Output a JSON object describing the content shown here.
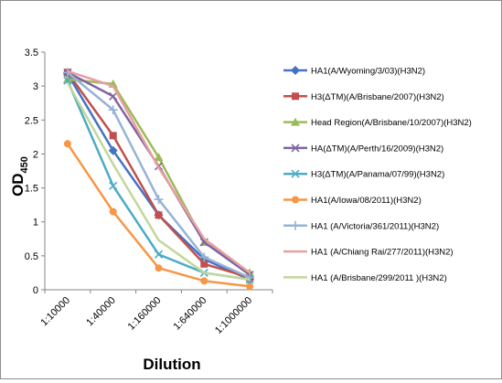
{
  "chart_data": {
    "type": "line",
    "xlabel": "Dilution",
    "ylabel": "OD",
    "ylabel_subscript": "450",
    "categories": [
      "1:10000",
      "1:40000",
      "1:160000",
      "1:640000",
      "1:1000000"
    ],
    "ylim": [
      0,
      3.5
    ],
    "yticks": [
      "0",
      "0.5",
      "1",
      "1.5",
      "2",
      "2.5",
      "3",
      "3.5"
    ],
    "grid": false,
    "legend": "right",
    "series": [
      {
        "name": "HA1(A/Wyoming/3/03)(H3N2)",
        "color": "#4472c4",
        "marker": "diamond",
        "values": [
          3.18,
          2.05,
          1.1,
          0.45,
          0.15
        ]
      },
      {
        "name": "H3(ΔTM)(A/Brisbane/2007)(H3N2)",
        "color": "#c0504d",
        "marker": "square",
        "values": [
          3.2,
          2.27,
          1.1,
          0.38,
          0.18
        ]
      },
      {
        "name": "Head Region(A/Brisbane/10/2007)(H3N2)",
        "color": "#9bbb59",
        "marker": "triangle",
        "values": [
          3.1,
          3.03,
          1.95,
          0.7,
          0.25
        ]
      },
      {
        "name": "HA(ΔTM)(A/Perth/16/2009)(H3N2)",
        "color": "#8064a2",
        "marker": "x",
        "values": [
          3.2,
          2.85,
          1.82,
          0.7,
          0.22
        ]
      },
      {
        "name": "H3(ΔTM)(A/Panama/07/99)(H3N2)",
        "color": "#4bacc6",
        "marker": "x",
        "values": [
          3.08,
          1.53,
          0.52,
          0.25,
          0.15
        ]
      },
      {
        "name": "HA1(A/Iowa/08/2011)(H3N2)",
        "color": "#f79646",
        "marker": "circle",
        "values": [
          2.15,
          1.15,
          0.32,
          0.13,
          0.05
        ]
      },
      {
        "name": "HA1 (A/Victoria/361/2011)(H3N2)",
        "color": "#95b3d7",
        "marker": "plus",
        "values": [
          3.2,
          2.65,
          1.33,
          0.48,
          0.18
        ]
      },
      {
        "name": "HA1 (A/Chiang Rai/277/2011)(H3N2)",
        "color": "#e6a0a0",
        "marker": "none",
        "values": [
          3.22,
          3.0,
          1.8,
          0.75,
          0.25
        ]
      },
      {
        "name": "HA1 (A/Brisbane/299/2011 )(H3N2)",
        "color": "#c3d69b",
        "marker": "none",
        "values": [
          3.05,
          1.85,
          0.73,
          0.25,
          0.15
        ]
      }
    ]
  }
}
